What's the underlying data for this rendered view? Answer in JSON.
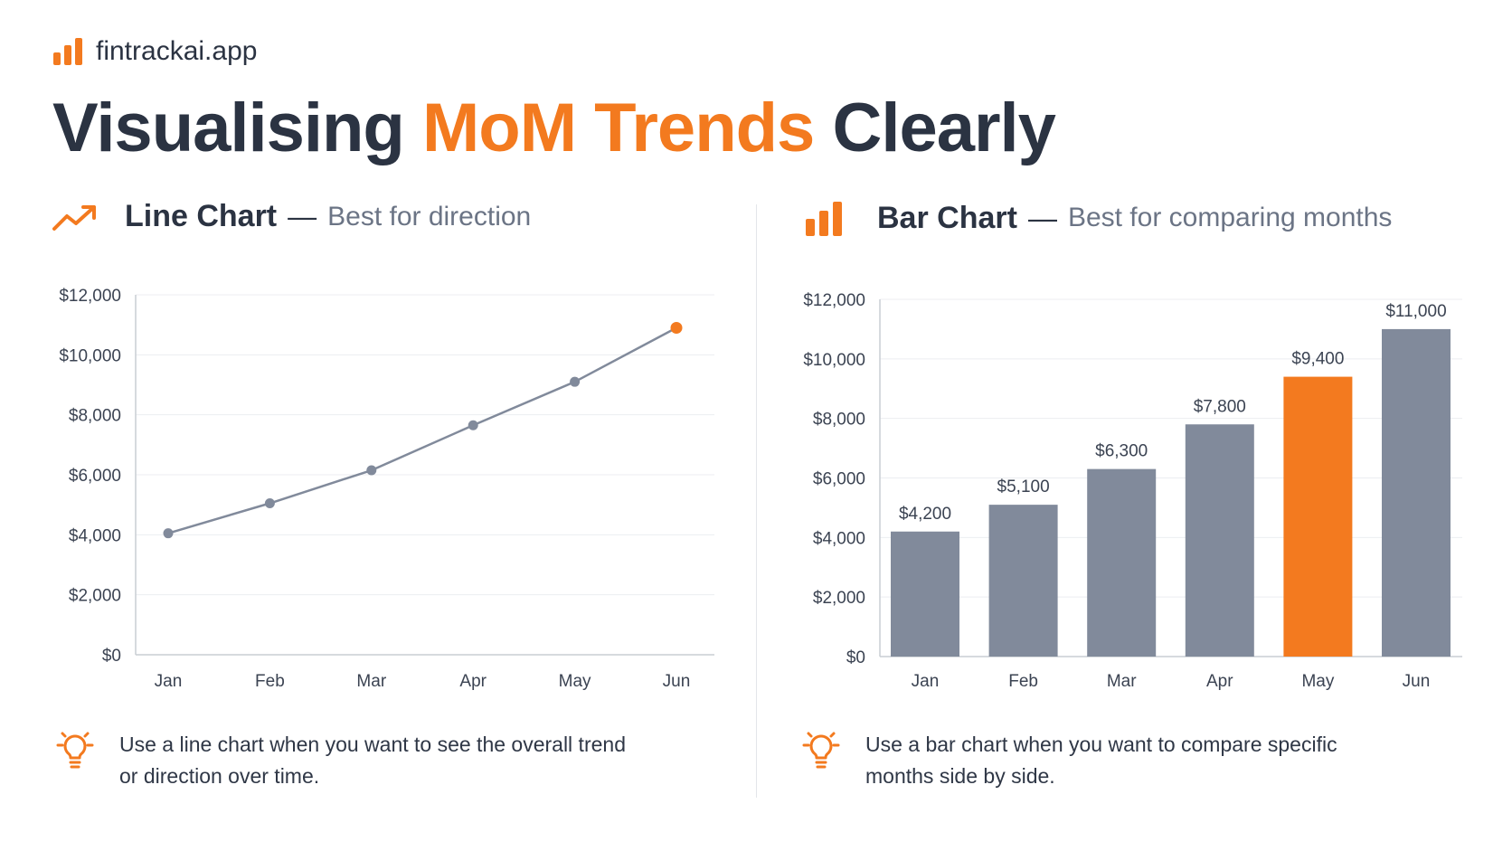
{
  "brand": {
    "name": "fintrackai.app",
    "icon": "bar-chart-icon",
    "accent": "#f37a1f"
  },
  "headline": {
    "part1": "Visualising ",
    "highlight": "MoM Trends",
    "part2": " Clearly"
  },
  "colors": {
    "accent": "#f37a1f",
    "neutral": "#818a9b",
    "text": "#2b3342",
    "muted": "#6b7485",
    "grid": "#eceef1"
  },
  "left_panel": {
    "icon": "trend-up-icon",
    "title": "Line Chart",
    "dash": "—",
    "subtitle": "Best for direction",
    "tip_icon": "lightbulb-icon",
    "tip": "Use a line chart when you want to see the overall trend or direction over time."
  },
  "right_panel": {
    "icon": "bar-chart-icon",
    "title": "Bar Chart",
    "dash": "—",
    "subtitle": "Best for comparing months",
    "tip_icon": "lightbulb-icon",
    "tip": "Use a bar chart when you want to compare specific months side by side."
  },
  "chart_data": [
    {
      "type": "line",
      "categories": [
        "Jan",
        "Feb",
        "Mar",
        "Apr",
        "May",
        "Jun"
      ],
      "values": [
        4050,
        5050,
        6150,
        7650,
        9100,
        10900
      ],
      "highlight_index": 5,
      "ylim": [
        0,
        12000
      ],
      "yticks": [
        0,
        2000,
        4000,
        6000,
        8000,
        10000,
        12000
      ],
      "ytick_labels": [
        "$0",
        "$2,000",
        "$4,000",
        "$6,000",
        "$8,000",
        "$10,000",
        "$12,000"
      ],
      "grid": true,
      "legend": "none"
    },
    {
      "type": "bar",
      "categories": [
        "Jan",
        "Feb",
        "Mar",
        "Apr",
        "May",
        "Jun"
      ],
      "values": [
        4200,
        5100,
        6300,
        7800,
        9400,
        11000
      ],
      "value_labels": [
        "$4,200",
        "$5,100",
        "$6,300",
        "$7,800",
        "$9,400",
        "$11,000"
      ],
      "highlight_index": 4,
      "ylim": [
        0,
        12000
      ],
      "yticks": [
        0,
        2000,
        4000,
        6000,
        8000,
        10000,
        12000
      ],
      "ytick_labels": [
        "$0",
        "$2,000",
        "$4,000",
        "$6,000",
        "$8,000",
        "$10,000",
        "$12,000"
      ],
      "grid": true,
      "legend": "none"
    }
  ]
}
